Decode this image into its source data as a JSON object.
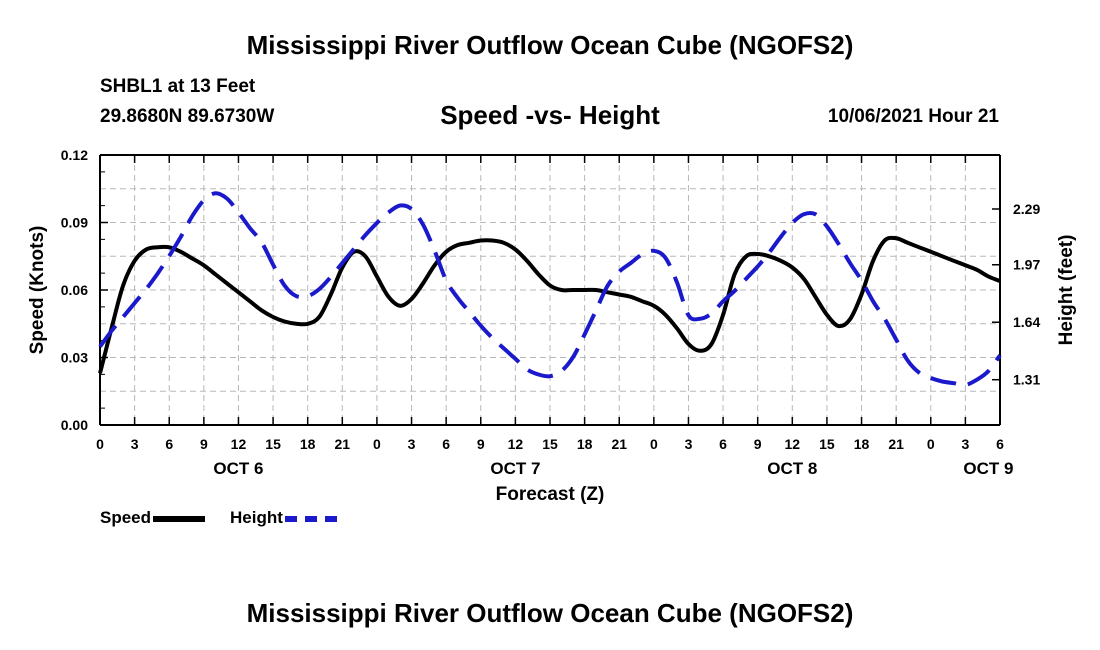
{
  "header": {
    "title": "Mississippi River Outflow Ocean Cube (NGOFS2)",
    "station": "SHBL1 at 13 Feet",
    "coords": "29.8680N  89.6730W",
    "subtitle": "Speed -vs- Height",
    "datetime": "10/06/2021 Hour 21"
  },
  "footer": {
    "title": "Mississippi River Outflow Ocean Cube (NGOFS2)"
  },
  "legend": {
    "speed_label": "Speed",
    "height_label": "Height"
  },
  "colors": {
    "speed": "#000000",
    "height": "#1a1acc",
    "grid": "#b8b8b8"
  },
  "chart_data": {
    "type": "line",
    "title": "Speed -vs- Height",
    "xlabel": "Forecast (Z)",
    "ylabel": "Speed (Knots)",
    "ylabel_right": "Height (feet)",
    "x_unit": "hours since 2021-10-06 00Z",
    "xlim": [
      0,
      78
    ],
    "ylim": [
      0,
      0.12
    ],
    "ylim_right": [
      1.05,
      2.6
    ],
    "grid": true,
    "x_ticks": [
      {
        "x": 0,
        "label": "0"
      },
      {
        "x": 3,
        "label": "3"
      },
      {
        "x": 6,
        "label": "6"
      },
      {
        "x": 9,
        "label": "9"
      },
      {
        "x": 12,
        "label": "12"
      },
      {
        "x": 15,
        "label": "15"
      },
      {
        "x": 18,
        "label": "18"
      },
      {
        "x": 21,
        "label": "21"
      },
      {
        "x": 24,
        "label": "0"
      },
      {
        "x": 27,
        "label": "3"
      },
      {
        "x": 30,
        "label": "6"
      },
      {
        "x": 33,
        "label": "9"
      },
      {
        "x": 36,
        "label": "12"
      },
      {
        "x": 39,
        "label": "15"
      },
      {
        "x": 42,
        "label": "18"
      },
      {
        "x": 45,
        "label": "21"
      },
      {
        "x": 48,
        "label": "0"
      },
      {
        "x": 51,
        "label": "3"
      },
      {
        "x": 54,
        "label": "6"
      },
      {
        "x": 57,
        "label": "9"
      },
      {
        "x": 60,
        "label": "12"
      },
      {
        "x": 63,
        "label": "15"
      },
      {
        "x": 66,
        "label": "18"
      },
      {
        "x": 69,
        "label": "21"
      },
      {
        "x": 72,
        "label": "0"
      },
      {
        "x": 75,
        "label": "3"
      },
      {
        "x": 78,
        "label": "6"
      }
    ],
    "date_labels": [
      {
        "x": 12,
        "label": "OCT 6"
      },
      {
        "x": 36,
        "label": "OCT 7"
      },
      {
        "x": 60,
        "label": "OCT 8"
      },
      {
        "x": 77,
        "label": "OCT 9"
      }
    ],
    "y_ticks": [
      {
        "v": 0,
        "label": "0.00"
      },
      {
        "v": 0.03,
        "label": "0.03"
      },
      {
        "v": 0.06,
        "label": "0.06"
      },
      {
        "v": 0.09,
        "label": "0.09"
      },
      {
        "v": 0.12,
        "label": "0.12"
      }
    ],
    "y_ticks_right": [
      {
        "v": 1.31,
        "label": "1.31"
      },
      {
        "v": 1.64,
        "label": "1.64"
      },
      {
        "v": 1.97,
        "label": "1.97"
      },
      {
        "v": 2.29,
        "label": "2.29"
      }
    ],
    "series": [
      {
        "name": "Speed",
        "axis": "left",
        "style": "solid",
        "x": [
          0,
          1,
          2,
          3,
          4,
          5,
          6,
          7,
          8,
          9,
          10,
          11,
          12,
          13,
          14,
          15,
          16,
          17,
          18,
          19,
          20,
          21,
          22,
          23,
          24,
          25,
          26,
          27,
          28,
          29,
          30,
          31,
          32,
          33,
          34,
          35,
          36,
          37,
          38,
          39,
          40,
          41,
          42,
          43,
          44,
          45,
          46,
          47,
          48,
          49,
          50,
          51,
          52,
          53,
          54,
          55,
          56,
          57,
          58,
          59,
          60,
          61,
          62,
          63,
          64,
          65,
          66,
          67,
          68,
          69,
          70,
          71,
          72,
          73,
          74,
          75,
          76,
          77,
          78
        ],
        "values": [
          0.023,
          0.043,
          0.062,
          0.073,
          0.078,
          0.079,
          0.079,
          0.077,
          0.074,
          0.071,
          0.067,
          0.063,
          0.059,
          0.055,
          0.051,
          0.048,
          0.046,
          0.045,
          0.045,
          0.048,
          0.058,
          0.07,
          0.077,
          0.075,
          0.066,
          0.057,
          0.053,
          0.056,
          0.063,
          0.071,
          0.077,
          0.08,
          0.081,
          0.082,
          0.082,
          0.081,
          0.078,
          0.073,
          0.067,
          0.062,
          0.06,
          0.06,
          0.06,
          0.06,
          0.059,
          0.058,
          0.057,
          0.055,
          0.053,
          0.049,
          0.043,
          0.036,
          0.033,
          0.036,
          0.049,
          0.067,
          0.075,
          0.076,
          0.075,
          0.073,
          0.07,
          0.065,
          0.057,
          0.049,
          0.044,
          0.047,
          0.058,
          0.073,
          0.082,
          0.083,
          0.081,
          0.079,
          0.077,
          0.075,
          0.073,
          0.071,
          0.069,
          0.066,
          0.064
        ]
      },
      {
        "name": "Height",
        "axis": "right",
        "style": "dashed",
        "x": [
          0,
          1,
          2,
          3,
          4,
          5,
          6,
          7,
          8,
          9,
          10,
          11,
          12,
          13,
          14,
          15,
          16,
          17,
          18,
          19,
          20,
          21,
          22,
          23,
          24,
          25,
          26,
          27,
          28,
          29,
          30,
          31,
          32,
          33,
          34,
          35,
          36,
          37,
          38,
          39,
          40,
          41,
          42,
          43,
          44,
          45,
          46,
          47,
          48,
          49,
          50,
          51,
          52,
          53,
          54,
          55,
          56,
          57,
          58,
          59,
          60,
          61,
          62,
          63,
          64,
          65,
          66,
          67,
          68,
          69,
          70,
          71,
          72,
          73,
          74,
          75,
          76,
          77,
          78
        ],
        "values": [
          1.5,
          1.59,
          1.67,
          1.75,
          1.83,
          1.92,
          2.02,
          2.13,
          2.25,
          2.34,
          2.38,
          2.35,
          2.27,
          2.18,
          2.1,
          1.97,
          1.85,
          1.79,
          1.79,
          1.83,
          1.9,
          1.98,
          2.06,
          2.14,
          2.21,
          2.27,
          2.31,
          2.29,
          2.2,
          2.05,
          1.88,
          1.78,
          1.7,
          1.62,
          1.55,
          1.49,
          1.43,
          1.37,
          1.34,
          1.33,
          1.36,
          1.44,
          1.57,
          1.71,
          1.85,
          1.93,
          1.98,
          2.03,
          2.05,
          2.01,
          1.87,
          1.68,
          1.66,
          1.69,
          1.76,
          1.82,
          1.89,
          1.96,
          2.04,
          2.13,
          2.21,
          2.26,
          2.26,
          2.19,
          2.09,
          1.98,
          1.88,
          1.76,
          1.66,
          1.54,
          1.42,
          1.35,
          1.32,
          1.3,
          1.29,
          1.28,
          1.31,
          1.36,
          1.45
        ]
      }
    ]
  }
}
